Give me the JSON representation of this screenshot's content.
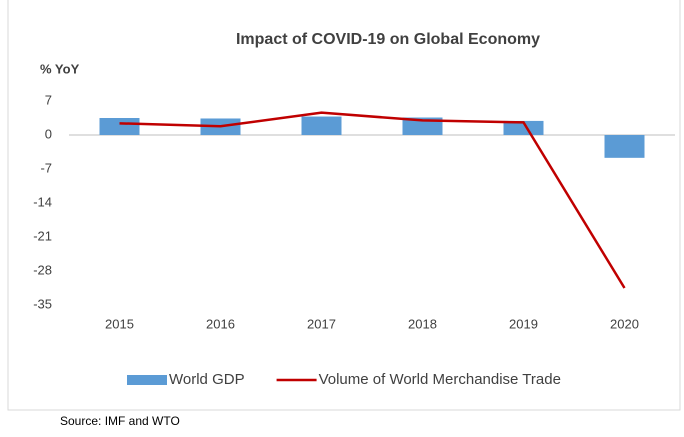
{
  "chart_data": {
    "type": "bar-line",
    "title": "Impact of COVID-19  on Global Economy",
    "y_label": "% YoY",
    "categories": [
      "2015",
      "2016",
      "2017",
      "2018",
      "2019",
      "2020"
    ],
    "series": [
      {
        "name": "World GDP",
        "type": "bar",
        "color": "#5b9bd5",
        "values": [
          3.5,
          3.4,
          3.8,
          3.6,
          2.9,
          -4.7
        ]
      },
      {
        "name": "Volume of World Merchandise Trade",
        "type": "line",
        "color": "#c00000",
        "values": [
          2.4,
          1.8,
          4.6,
          3.0,
          2.6,
          -31.5
        ]
      }
    ],
    "ylim": [
      -35,
      7
    ],
    "yticks": [
      7,
      0,
      -7,
      -14,
      -21,
      -28,
      -35
    ],
    "legend": "bottom",
    "grid": false,
    "source": "Source: IMF and WTO"
  }
}
